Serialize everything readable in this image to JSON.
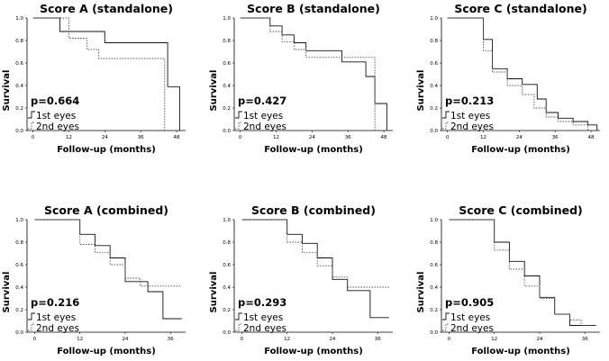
{
  "chart_data": [
    {
      "type": "line",
      "subtype": "kaplan-meier-step",
      "title": "Score A (standalone)",
      "xlabel": "Follow-up (months)",
      "ylabel": "Survival",
      "xticks": [
        "0",
        "12",
        "24",
        "36",
        "48"
      ],
      "yticks": [
        "0.0",
        "0.2",
        "0.4",
        "0.6",
        "0.8",
        "1.0"
      ],
      "xlim": [
        -2,
        51
      ],
      "ylim": [
        0,
        1
      ],
      "annotation": "p=0.664",
      "series": [
        {
          "name": "1st eyes",
          "style": "solid",
          "x": [
            0,
            9,
            12,
            24,
            45,
            49
          ],
          "y": [
            1.0,
            0.88,
            0.88,
            0.78,
            0.39,
            0.0
          ]
        },
        {
          "name": "2nd eyes",
          "style": "dotted",
          "x": [
            0,
            12,
            18,
            22,
            44
          ],
          "y": [
            1.0,
            0.82,
            0.72,
            0.64,
            0.0
          ]
        }
      ]
    },
    {
      "type": "line",
      "subtype": "kaplan-meier-step",
      "title": "Score B (standalone)",
      "xlabel": "Follow-up (months)",
      "ylabel": "Survival",
      "xticks": [
        "0",
        "12",
        "24",
        "36",
        "48"
      ],
      "yticks": [
        "0.0",
        "0.2",
        "0.4",
        "0.6",
        "0.8",
        "1.0"
      ],
      "xlim": [
        -2,
        51
      ],
      "ylim": [
        0,
        1
      ],
      "annotation": "p=0.427",
      "series": [
        {
          "name": "1st eyes",
          "style": "solid",
          "x": [
            0,
            10,
            14,
            18,
            22,
            27,
            34,
            42,
            45,
            49
          ],
          "y": [
            1.0,
            0.93,
            0.85,
            0.78,
            0.71,
            0.71,
            0.61,
            0.48,
            0.24,
            0.0
          ]
        },
        {
          "name": "2nd eyes",
          "style": "dotted",
          "x": [
            0,
            10,
            14,
            18,
            22,
            32,
            45
          ],
          "y": [
            1.0,
            0.88,
            0.79,
            0.72,
            0.65,
            0.65,
            0.0
          ]
        }
      ]
    },
    {
      "type": "line",
      "subtype": "kaplan-meier-step",
      "title": "Score C (standalone)",
      "xlabel": "Follow-up (months)",
      "ylabel": "Survival",
      "xticks": [
        "0",
        "12",
        "24",
        "36",
        "48"
      ],
      "yticks": [
        "0.0",
        "0.2",
        "0.4",
        "0.6",
        "0.8",
        "1.0"
      ],
      "xlim": [
        -2,
        51
      ],
      "ylim": [
        0,
        1
      ],
      "annotation": "p=0.213",
      "series": [
        {
          "name": "1st eyes",
          "style": "solid",
          "x": [
            0,
            12,
            15,
            20,
            25,
            30,
            33,
            37,
            42,
            47,
            50
          ],
          "y": [
            1.0,
            0.81,
            0.55,
            0.46,
            0.41,
            0.28,
            0.16,
            0.11,
            0.08,
            0.05,
            0.0
          ]
        },
        {
          "name": "2nd eyes",
          "style": "dotted",
          "x": [
            0,
            12,
            15,
            20,
            25,
            29,
            33,
            37,
            42,
            47
          ],
          "y": [
            1.0,
            0.71,
            0.52,
            0.4,
            0.32,
            0.2,
            0.12,
            0.08,
            0.05,
            0.0
          ]
        }
      ]
    },
    {
      "type": "line",
      "subtype": "kaplan-meier-step",
      "title": "Score A (combined)",
      "xlabel": "Follow-up (months)",
      "ylabel": "Survival",
      "xticks": [
        "0",
        "12",
        "24",
        "36"
      ],
      "yticks": [
        "0.0",
        "0.2",
        "0.4",
        "0.6",
        "0.8",
        "1.0"
      ],
      "xlim": [
        -2,
        40
      ],
      "ylim": [
        0,
        1
      ],
      "annotation": "p=0.216",
      "series": [
        {
          "name": "1st eyes",
          "style": "solid",
          "x": [
            0,
            12,
            16,
            20,
            24,
            30,
            34,
            39
          ],
          "y": [
            1.0,
            0.87,
            0.77,
            0.66,
            0.45,
            0.36,
            0.12,
            0.12
          ]
        },
        {
          "name": "2nd eyes",
          "style": "dotted",
          "x": [
            0,
            12,
            16,
            20,
            24,
            28,
            39
          ],
          "y": [
            1.0,
            0.78,
            0.71,
            0.6,
            0.48,
            0.41,
            0.41
          ]
        }
      ]
    },
    {
      "type": "line",
      "subtype": "kaplan-meier-step",
      "title": "Score B (combined)",
      "xlabel": "Follow-up (months)",
      "ylabel": "Survival",
      "xticks": [
        "0",
        "12",
        "24",
        "36"
      ],
      "yticks": [
        "0.0",
        "0.2",
        "0.4",
        "0.6",
        "0.8",
        "1.0"
      ],
      "xlim": [
        -2,
        40
      ],
      "ylim": [
        0,
        1
      ],
      "annotation": "p=0.293",
      "series": [
        {
          "name": "1st eyes",
          "style": "solid",
          "x": [
            0,
            12,
            16,
            20,
            24,
            28,
            34,
            39
          ],
          "y": [
            1.0,
            0.87,
            0.79,
            0.66,
            0.47,
            0.37,
            0.13,
            0.13
          ]
        },
        {
          "name": "2nd eyes",
          "style": "dotted",
          "x": [
            0,
            12,
            16,
            20,
            24,
            28,
            39
          ],
          "y": [
            1.0,
            0.8,
            0.71,
            0.59,
            0.49,
            0.4,
            0.4
          ]
        }
      ]
    },
    {
      "type": "line",
      "subtype": "kaplan-meier-step",
      "title": "Score C (combined)",
      "xlabel": "Follow-up (months)",
      "ylabel": "Survival",
      "xticks": [
        "0",
        "12",
        "24",
        "36"
      ],
      "yticks": [
        "0.0",
        "0.2",
        "0.4",
        "0.6",
        "0.8",
        "1.0"
      ],
      "xlim": [
        -2,
        40
      ],
      "ylim": [
        0,
        1
      ],
      "annotation": "p=0.905",
      "series": [
        {
          "name": "1st eyes",
          "style": "solid",
          "x": [
            0,
            12,
            16,
            20,
            24,
            28,
            32,
            36,
            39
          ],
          "y": [
            1.0,
            0.8,
            0.63,
            0.5,
            0.31,
            0.16,
            0.06,
            0.06,
            0.06
          ]
        },
        {
          "name": "2nd eyes",
          "style": "dotted",
          "x": [
            0,
            12,
            16,
            20,
            24,
            28,
            32,
            35,
            39
          ],
          "y": [
            1.0,
            0.73,
            0.56,
            0.41,
            0.3,
            0.16,
            0.11,
            0.06,
            0.06
          ]
        }
      ]
    }
  ]
}
